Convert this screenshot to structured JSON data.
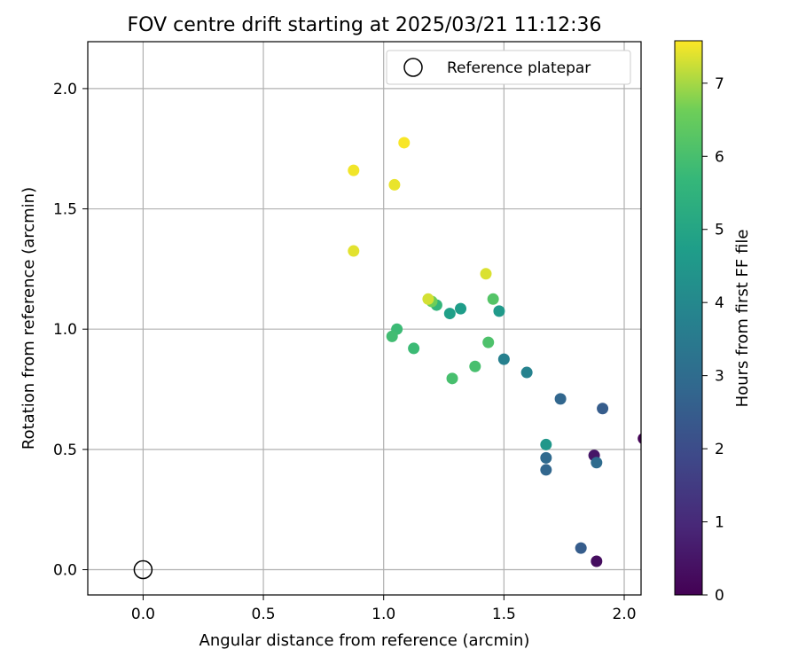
{
  "chart_data": {
    "type": "scatter",
    "title": "FOV centre drift starting at 2025/03/21 11:12:36",
    "xlabel": "Angular distance from reference (arcmin)",
    "ylabel": "Rotation from reference (arcmin)",
    "xlim": [
      -0.23,
      2.07
    ],
    "ylim": [
      -0.105,
      2.195
    ],
    "xticks": [
      0.0,
      0.5,
      1.0,
      1.5,
      2.0
    ],
    "xtick_labels": [
      "0.0",
      "0.5",
      "1.0",
      "1.5",
      "2.0"
    ],
    "yticks": [
      0.0,
      0.5,
      1.0,
      1.5,
      2.0
    ],
    "ytick_labels": [
      "0.0",
      "0.5",
      "1.0",
      "1.5",
      "2.0"
    ],
    "grid": true,
    "legend": {
      "label": "Reference platepar",
      "placement": "top-right"
    },
    "reference_point": {
      "x": 0.0,
      "y": 0.0
    },
    "colorbar": {
      "label": "Hours from first FF file",
      "range": [
        0,
        7.58
      ],
      "ticks": [
        0,
        1,
        2,
        3,
        4,
        5,
        6,
        7
      ],
      "tick_labels": [
        "0",
        "1",
        "2",
        "3",
        "4",
        "5",
        "6",
        "7"
      ],
      "colormap": "viridis"
    },
    "points": [
      {
        "x": 2.08,
        "y": 0.545,
        "hours": 0.05
      },
      {
        "x": 1.885,
        "y": 0.035,
        "hours": 0.3
      },
      {
        "x": 1.875,
        "y": 0.475,
        "hours": 0.5
      },
      {
        "x": 1.82,
        "y": 0.09,
        "hours": 2.5
      },
      {
        "x": 1.91,
        "y": 0.67,
        "hours": 2.5
      },
      {
        "x": 1.735,
        "y": 0.71,
        "hours": 2.8
      },
      {
        "x": 1.675,
        "y": 0.465,
        "hours": 2.9
      },
      {
        "x": 1.675,
        "y": 0.415,
        "hours": 2.8
      },
      {
        "x": 1.885,
        "y": 0.445,
        "hours": 3.0
      },
      {
        "x": 1.595,
        "y": 0.82,
        "hours": 3.8
      },
      {
        "x": 1.5,
        "y": 0.875,
        "hours": 3.7
      },
      {
        "x": 1.675,
        "y": 0.52,
        "hours": 4.5
      },
      {
        "x": 1.48,
        "y": 1.075,
        "hours": 4.6
      },
      {
        "x": 1.32,
        "y": 1.085,
        "hours": 4.7
      },
      {
        "x": 1.275,
        "y": 1.065,
        "hours": 4.8
      },
      {
        "x": 1.22,
        "y": 1.1,
        "hours": 5.6
      },
      {
        "x": 1.125,
        "y": 0.92,
        "hours": 5.8
      },
      {
        "x": 1.055,
        "y": 1.0,
        "hours": 5.8
      },
      {
        "x": 1.035,
        "y": 0.97,
        "hours": 5.9
      },
      {
        "x": 1.285,
        "y": 0.795,
        "hours": 6.0
      },
      {
        "x": 1.38,
        "y": 0.845,
        "hours": 6.0
      },
      {
        "x": 1.435,
        "y": 0.945,
        "hours": 6.1
      },
      {
        "x": 1.455,
        "y": 1.125,
        "hours": 6.2
      },
      {
        "x": 1.2,
        "y": 1.115,
        "hours": 6.6
      },
      {
        "x": 1.185,
        "y": 1.125,
        "hours": 7.3
      },
      {
        "x": 1.425,
        "y": 1.23,
        "hours": 7.35
      },
      {
        "x": 0.875,
        "y": 1.325,
        "hours": 7.4
      },
      {
        "x": 1.045,
        "y": 1.6,
        "hours": 7.45
      },
      {
        "x": 0.875,
        "y": 1.66,
        "hours": 7.5
      },
      {
        "x": 1.085,
        "y": 1.775,
        "hours": 7.55
      }
    ]
  }
}
